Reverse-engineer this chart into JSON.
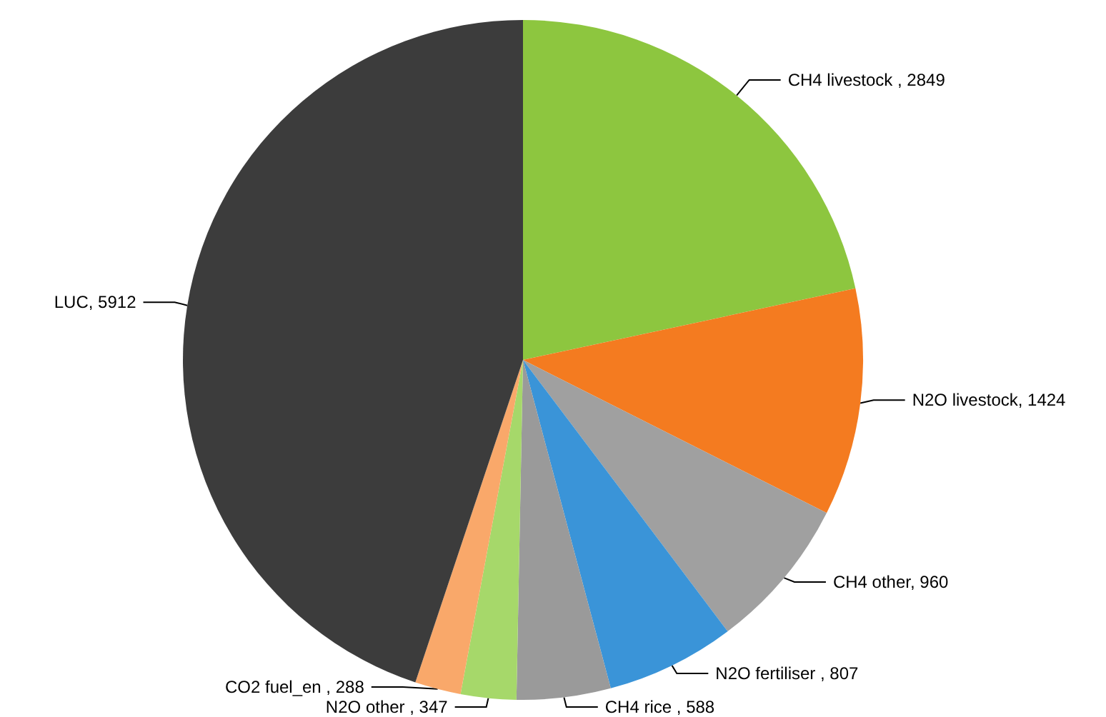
{
  "chart_data": {
    "type": "pie",
    "categories": [
      "CH4 livestock ",
      "N2O livestock",
      "CH4 other",
      "N2O fertiliser ",
      "CH4 rice ",
      "N2O other ",
      "CO2 fuel_en ",
      "LUC"
    ],
    "values": [
      2849,
      1424,
      960,
      807,
      588,
      347,
      288,
      5912
    ],
    "colors": [
      "#8dc63f",
      "#f47b20",
      "#a0a0a0",
      "#3a94d8",
      "#9a9a9a",
      "#a6d86a",
      "#f9a86a",
      "#3c3c3c"
    ],
    "value_labels": [
      ", 2849",
      ", 1424",
      ", 960",
      ", 807",
      ", 588",
      ", 347",
      ", 288",
      ", 5912"
    ],
    "legend": false
  }
}
